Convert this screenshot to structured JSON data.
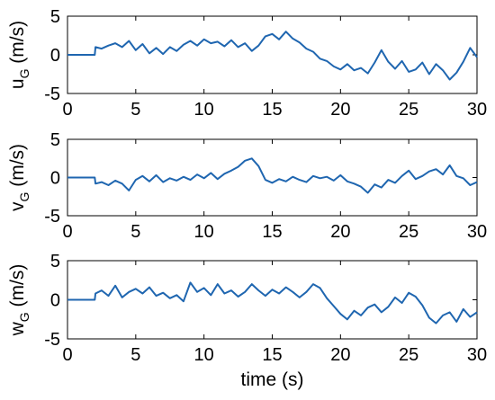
{
  "chart_data": [
    {
      "type": "line",
      "ylabel_main": "u",
      "ylabel_sub": "G",
      "ylabel_unit": " (m/s)",
      "xlim": [
        0,
        30
      ],
      "ylim": [
        -5,
        5
      ],
      "xticks": [
        0,
        5,
        10,
        15,
        20,
        25,
        30
      ],
      "yticks": [
        -5,
        0,
        5
      ],
      "xtick_labels": [
        "0",
        "5",
        "10",
        "15",
        "20",
        "25",
        "30"
      ],
      "ytick_labels": [
        "-5",
        "0",
        "5"
      ],
      "color": "#1f66b0",
      "grid": false,
      "x": [
        0,
        2,
        2.05,
        2.5,
        3,
        3.5,
        4,
        4.5,
        5,
        5.5,
        6,
        6.5,
        7,
        7.5,
        8,
        8.5,
        9,
        9.5,
        10,
        10.5,
        11,
        11.5,
        12,
        12.5,
        13,
        13.5,
        14,
        14.5,
        15,
        15.5,
        16,
        16.5,
        17,
        17.5,
        18,
        18.5,
        19,
        19.5,
        20,
        20.5,
        21,
        21.5,
        22,
        22.5,
        23,
        23.5,
        24,
        24.5,
        25,
        25.5,
        26,
        26.5,
        27,
        27.5,
        28,
        28.5,
        29,
        29.5,
        30
      ],
      "y": [
        0,
        0,
        1.0,
        0.8,
        1.2,
        1.5,
        1.0,
        1.8,
        0.6,
        1.4,
        0.2,
        0.9,
        0.1,
        1.0,
        0.5,
        1.3,
        1.8,
        1.2,
        2.0,
        1.5,
        1.7,
        1.1,
        1.9,
        1.0,
        1.5,
        0.5,
        1.2,
        2.4,
        2.7,
        2.0,
        3.0,
        2.1,
        1.6,
        0.8,
        0.4,
        -0.5,
        -0.8,
        -1.5,
        -1.9,
        -1.2,
        -2.0,
        -1.7,
        -2.4,
        -1.0,
        0.6,
        -0.9,
        -1.8,
        -0.8,
        -2.2,
        -1.9,
        -1.0,
        -2.5,
        -1.2,
        -2.0,
        -3.2,
        -2.3,
        -0.9,
        0.9,
        -0.3
      ]
    },
    {
      "type": "line",
      "ylabel_main": "v",
      "ylabel_sub": "G",
      "ylabel_unit": " (m/s)",
      "xlim": [
        0,
        30
      ],
      "ylim": [
        -5,
        5
      ],
      "xticks": [
        0,
        5,
        10,
        15,
        20,
        25,
        30
      ],
      "yticks": [
        -5,
        0,
        5
      ],
      "xtick_labels": [
        "0",
        "5",
        "10",
        "15",
        "20",
        "25",
        "30"
      ],
      "ytick_labels": [
        "-5",
        "0",
        "5"
      ],
      "color": "#1f66b0",
      "grid": false,
      "x": [
        0,
        2,
        2.05,
        2.5,
        3,
        3.5,
        4,
        4.5,
        5,
        5.5,
        6,
        6.5,
        7,
        7.5,
        8,
        8.5,
        9,
        9.5,
        10,
        10.5,
        11,
        11.5,
        12,
        12.5,
        13,
        13.5,
        14,
        14.5,
        15,
        15.5,
        16,
        16.5,
        17,
        17.5,
        18,
        18.5,
        19,
        19.5,
        20,
        20.5,
        21,
        21.5,
        22,
        22.5,
        23,
        23.5,
        24,
        24.5,
        25,
        25.5,
        26,
        26.5,
        27,
        27.5,
        28,
        28.5,
        29,
        29.5,
        30
      ],
      "y": [
        0,
        0,
        -0.8,
        -0.6,
        -1.0,
        -0.4,
        -0.8,
        -1.7,
        -0.3,
        0.2,
        -0.5,
        0.3,
        -0.6,
        -0.1,
        -0.4,
        0.1,
        -0.3,
        0.4,
        -0.1,
        0.6,
        -0.2,
        0.5,
        0.9,
        1.4,
        2.2,
        2.5,
        1.5,
        -0.3,
        -0.7,
        -0.2,
        -0.5,
        0.1,
        -0.3,
        -0.6,
        0.2,
        -0.1,
        0.1,
        -0.4,
        0.3,
        -0.5,
        -0.8,
        -1.2,
        -2.0,
        -0.9,
        -1.3,
        -0.3,
        -0.7,
        0.2,
        0.9,
        -0.2,
        0.2,
        0.8,
        1.1,
        0.4,
        1.6,
        0.2,
        -0.1,
        -1.0,
        -0.6
      ]
    },
    {
      "type": "line",
      "ylabel_main": "w",
      "ylabel_sub": "G",
      "ylabel_unit": " (m/s)",
      "xlabel": "time (s)",
      "xlim": [
        0,
        30
      ],
      "ylim": [
        -5,
        5
      ],
      "xticks": [
        0,
        5,
        10,
        15,
        20,
        25,
        30
      ],
      "yticks": [
        -5,
        0,
        5
      ],
      "xtick_labels": [
        "0",
        "5",
        "10",
        "15",
        "20",
        "25",
        "30"
      ],
      "ytick_labels": [
        "-5",
        "0",
        "5"
      ],
      "color": "#1f66b0",
      "grid": false,
      "x": [
        0,
        2,
        2.05,
        2.5,
        3,
        3.5,
        4,
        4.5,
        5,
        5.5,
        6,
        6.5,
        7,
        7.5,
        8,
        8.5,
        9,
        9.5,
        10,
        10.5,
        11,
        11.5,
        12,
        12.5,
        13,
        13.5,
        14,
        14.5,
        15,
        15.5,
        16,
        16.5,
        17,
        17.5,
        18,
        18.5,
        19,
        19.5,
        20,
        20.5,
        21,
        21.5,
        22,
        22.5,
        23,
        23.5,
        24,
        24.5,
        25,
        25.5,
        26,
        26.5,
        27,
        27.5,
        28,
        28.5,
        29,
        29.5,
        30
      ],
      "y": [
        0,
        0,
        0.8,
        1.2,
        0.5,
        1.8,
        0.3,
        1.0,
        1.4,
        0.8,
        1.6,
        0.5,
        0.9,
        0.2,
        0.6,
        -0.2,
        2.2,
        1.0,
        1.5,
        0.6,
        2.0,
        0.8,
        1.2,
        0.4,
        1.0,
        2.0,
        1.2,
        0.5,
        1.3,
        0.8,
        1.6,
        1.0,
        0.3,
        1.0,
        2.0,
        1.5,
        0.2,
        -0.8,
        -1.8,
        -2.5,
        -1.4,
        -2.0,
        -1.0,
        -0.6,
        -1.6,
        -0.9,
        0.3,
        -0.4,
        0.9,
        0.4,
        -0.7,
        -2.3,
        -3.0,
        -2.0,
        -1.6,
        -2.8,
        -1.2,
        -2.2,
        -1.6
      ]
    }
  ]
}
